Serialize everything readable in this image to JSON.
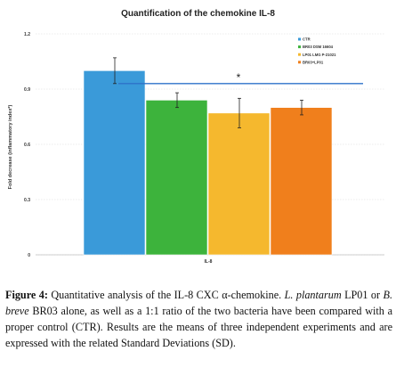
{
  "chart_data": {
    "type": "bar",
    "title": "Quantification of the chemokine IL-8",
    "ylabel": "Fold decrease (inflammatory index*)",
    "xlabel": "",
    "categories": [
      "IL-8"
    ],
    "ylim": [
      0,
      1.2
    ],
    "yticks": [
      0,
      0.3,
      0.6,
      0.9,
      1.2
    ],
    "ytick_labels": [
      "0",
      "0.3",
      "0.6",
      "0.9",
      "1.2"
    ],
    "grid": true,
    "legend_position": "top-right",
    "series": [
      {
        "name": "CTR",
        "values": [
          1.0
        ],
        "error": [
          0.07
        ],
        "color": "#3A9AD9"
      },
      {
        "name": "BR03 DSM 16604",
        "values": [
          0.84
        ],
        "error": [
          0.04
        ],
        "color": "#3DB33C"
      },
      {
        "name": "LP01 LMG P-21021",
        "values": [
          0.77
        ],
        "error": [
          0.08
        ],
        "color": "#F5B82E"
      },
      {
        "name": "BR03+LP01",
        "values": [
          0.8
        ],
        "error": [
          0.04
        ],
        "color": "#F07F1C"
      }
    ],
    "significance": {
      "label": "*",
      "line_level": 0.93,
      "color": "#2E72C9"
    }
  },
  "caption": {
    "figure_label": "Figure 4:",
    "t1": " Quantitative analysis of the IL-8 CXC ",
    "alpha": "α",
    "t2": "-chemokine. ",
    "sp1": "L. plantarum",
    "t3": " LP01 or ",
    "sp2": "B. breve",
    "t4": " BR03 alone, as well as a 1:1 ratio of the two bacteria have been compared with a proper control (CTR). Results are the means of three independent experiments and are expressed with the related Standard Deviations (SD)."
  }
}
